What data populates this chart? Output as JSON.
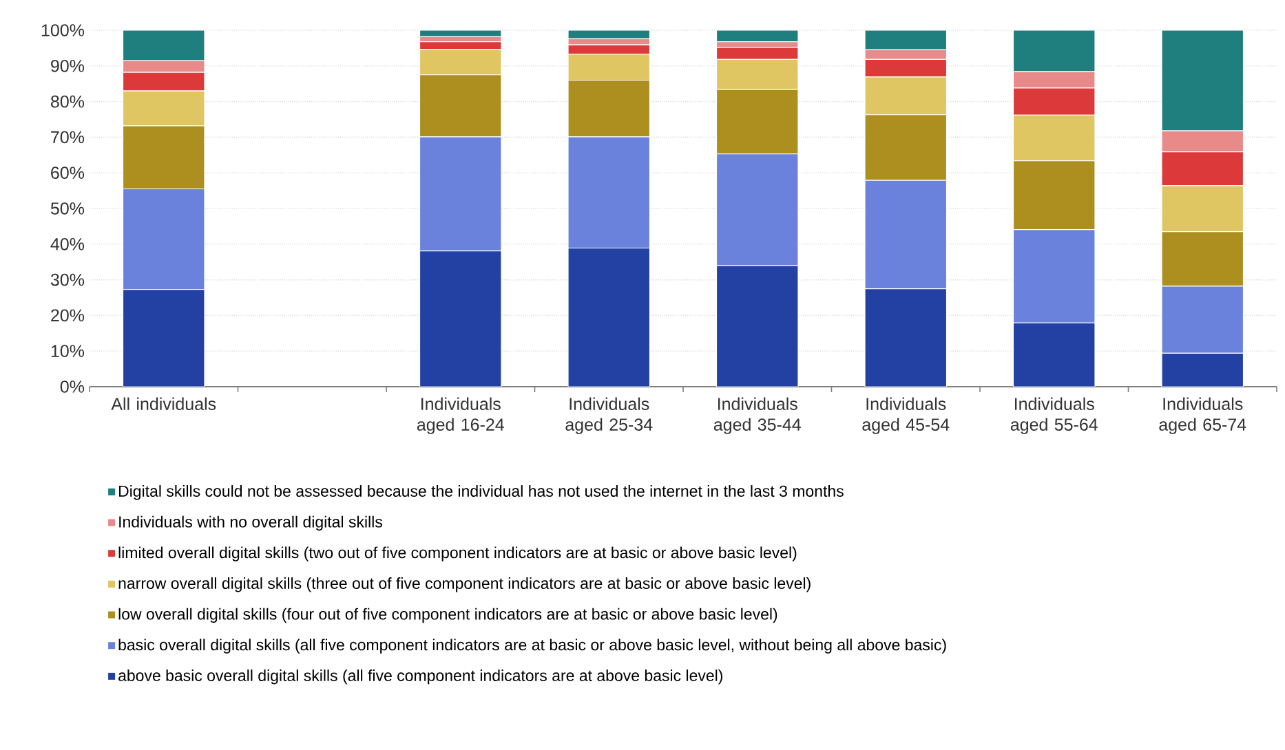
{
  "chart_data": {
    "type": "bar",
    "stacked": true,
    "categories": [
      "All individuals",
      null,
      "Individuals aged 16-24",
      "Individuals aged 25-34",
      "Individuals aged 35-44",
      "Individuals aged 45-54",
      "Individuals aged 55-64",
      "Individuals aged 65-74"
    ],
    "series": [
      {
        "name": "above basic overall digital skills (all five component indicators are at above basic level)",
        "color": "#2340a3",
        "values": [
          27.3,
          null,
          38.1,
          38.9,
          34.0,
          27.5,
          17.9,
          9.4
        ]
      },
      {
        "name": "basic overall digital skills (all five component indicators are at basic or above basic level, without being all above basic)",
        "color": "#6a82dc",
        "values": [
          28.2,
          null,
          32.0,
          31.2,
          31.3,
          30.4,
          26.2,
          18.8
        ]
      },
      {
        "name": "low overall digital skills (four out of five component indicators are at basic or above basic level)",
        "color": "#ad8f1f",
        "values": [
          17.7,
          null,
          17.4,
          15.9,
          18.1,
          18.4,
          19.3,
          15.3
        ]
      },
      {
        "name": "narrow overall digital skills (three out of five component indicators are at basic or above basic level)",
        "color": "#e0c563",
        "values": [
          9.8,
          null,
          7.1,
          7.3,
          8.4,
          10.6,
          12.8,
          12.9
        ]
      },
      {
        "name": "limited overall digital skills (two out of five component indicators are at basic or above basic level)",
        "color": "#dc3a3a",
        "values": [
          5.2,
          null,
          2.2,
          2.6,
          3.4,
          4.9,
          7.6,
          9.5
        ]
      },
      {
        "name": "Individuals with no overall digital skills",
        "color": "#e88a8a",
        "values": [
          3.3,
          null,
          1.4,
          1.7,
          1.6,
          2.7,
          4.6,
          5.9
        ]
      },
      {
        "name": "Digital skills could not be assessed because the individual has not used the internet in the last 3 months",
        "color": "#1f7f7f",
        "values": [
          8.5,
          null,
          1.8,
          2.4,
          3.2,
          5.5,
          11.6,
          28.2
        ]
      }
    ],
    "ylim": [
      0,
      100
    ],
    "yticks": [
      {
        "value": 0,
        "label": "0%"
      },
      {
        "value": 10,
        "label": "10%"
      },
      {
        "value": 20,
        "label": "20%"
      },
      {
        "value": 30,
        "label": "30%"
      },
      {
        "value": 40,
        "label": "40%"
      },
      {
        "value": 50,
        "label": "50%"
      },
      {
        "value": 60,
        "label": "60%"
      },
      {
        "value": 70,
        "label": "70%"
      },
      {
        "value": 80,
        "label": "80%"
      },
      {
        "value": 90,
        "label": "90%"
      },
      {
        "value": 100,
        "label": "100%"
      }
    ],
    "grid": "y",
    "legend": "bottom"
  }
}
